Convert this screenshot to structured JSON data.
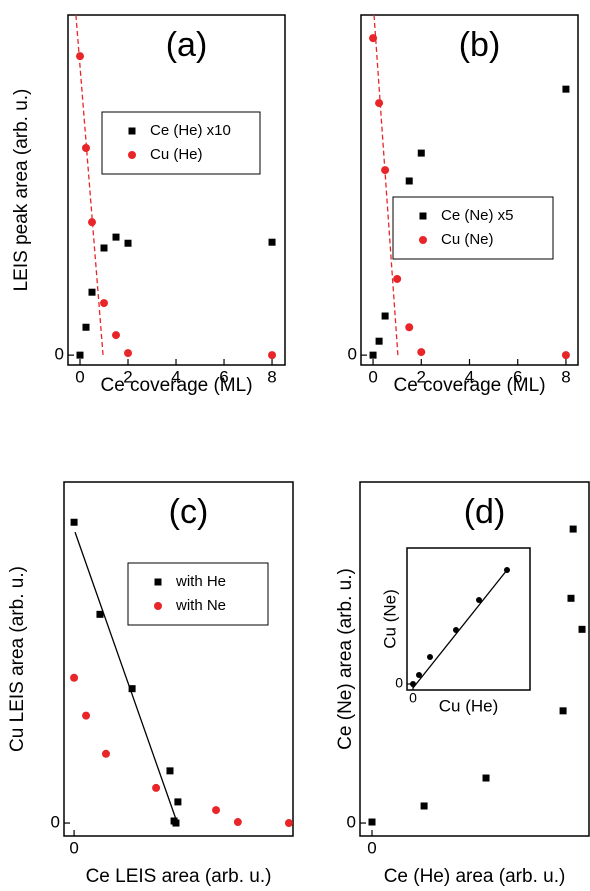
{
  "chart_data": [
    {
      "type": "scatter",
      "title": "(a)",
      "xlabel": "Ce coverage (ML)",
      "ylabel": "LEIS peak area (arb. u.)",
      "xlim": [
        -0.5,
        8.54
      ],
      "ylim": [
        -0.29,
        10
      ],
      "xticks": [
        0,
        2,
        4,
        6,
        8
      ],
      "yticks": [
        0
      ],
      "legend": "right",
      "series": [
        {
          "name": "Ce (He) x10",
          "color": "#000000",
          "marker": "square",
          "x": [
            0,
            0.25,
            0.5,
            1,
            1.5,
            2,
            8
          ],
          "values": [
            0,
            0.82,
            1.85,
            3.15,
            3.47,
            3.29,
            3.32
          ]
        },
        {
          "name": "Cu (He)",
          "color": "#e8262a",
          "marker": "circle",
          "x": [
            0,
            0.25,
            0.5,
            1,
            1.5,
            2,
            8
          ],
          "values": [
            8.79,
            6.09,
            3.91,
            1.53,
            0.59,
            0.06,
            0
          ]
        }
      ],
      "fit_line": {
        "color": "#e8262a",
        "dashed": true,
        "x": [
          -0.17,
          0.96
        ],
        "values": [
          10,
          0
        ]
      }
    },
    {
      "type": "scatter",
      "title": "(b)",
      "xlabel": "Ce coverage (ML)",
      "xlim": [
        -0.5,
        8.5
      ],
      "ylim": [
        -0.29,
        10
      ],
      "xticks": [
        0,
        2,
        4,
        6,
        8
      ],
      "yticks": [
        0
      ],
      "legend": "right",
      "series": [
        {
          "name": "Ce (Ne) x5",
          "color": "#000000",
          "marker": "square",
          "x": [
            0,
            0.25,
            0.5,
            1,
            1.5,
            2,
            8
          ],
          "values": [
            0,
            0.41,
            1.15,
            2.97,
            5.12,
            5.94,
            7.82
          ]
        },
        {
          "name": "Cu (Ne)",
          "color": "#e8262a",
          "marker": "circle",
          "x": [
            0,
            0.25,
            0.5,
            1,
            1.5,
            2,
            8
          ],
          "values": [
            9.32,
            7.41,
            5.44,
            2.24,
            0.82,
            0.09,
            0
          ]
        }
      ],
      "fit_line": {
        "color": "#e8262a",
        "dashed": true,
        "x": [
          0.04,
          1.03
        ],
        "values": [
          10,
          0
        ]
      }
    },
    {
      "type": "scatter",
      "title": "(c)",
      "xlabel": "Ce LEIS area (arb. u.)",
      "ylabel": "Cu LEIS area (arb. u.)",
      "xlim": [
        -0.42,
        9.13
      ],
      "ylim": [
        -0.38,
        10
      ],
      "xticks": [
        0
      ],
      "yticks": [
        0
      ],
      "legend": "right",
      "series": [
        {
          "name": "with He",
          "color": "#000000",
          "marker": "square",
          "x": [
            0,
            1.08,
            2.42,
            4.0,
            4.17,
            4.25,
            4.33
          ],
          "values": [
            8.82,
            6.12,
            3.94,
            1.53,
            0.06,
            0,
            0.62
          ]
        },
        {
          "name": "with Ne",
          "color": "#e8262a",
          "marker": "circle",
          "x": [
            0,
            0.5,
            1.33,
            3.42,
            5.92,
            6.83,
            8.96
          ],
          "values": [
            4.26,
            3.15,
            2.03,
            1.03,
            0.38,
            0.03,
            0
          ]
        }
      ],
      "fit_line": {
        "color": "#000000",
        "dashed": false,
        "x": [
          0.04,
          4.29
        ],
        "values": [
          8.53,
          0.03
        ]
      }
    },
    {
      "type": "scatter",
      "title": "(d)",
      "xlabel": "Ce (He) area (arb. u.)",
      "ylabel": "Ce (Ne) area (arb. u.)",
      "xlim": [
        -0.5,
        9.04
      ],
      "ylim": [
        -0.38,
        10
      ],
      "xticks": [
        0
      ],
      "yticks": [
        0
      ],
      "series": [
        {
          "color": "#000000",
          "marker": "square",
          "x": [
            0,
            2.17,
            4.75,
            7.96,
            8.29,
            8.38,
            8.75
          ],
          "values": [
            0.03,
            0.5,
            1.32,
            3.29,
            6.59,
            8.62,
            5.68
          ]
        }
      ],
      "inset": {
        "type": "scatter",
        "xlabel": "Cu (He)",
        "ylabel": "Cu (Ne)",
        "xlim": [
          -0.6,
          11.7
        ],
        "ylim": [
          -0.6,
          13.6
        ],
        "xticks": [
          0
        ],
        "yticks": [
          0
        ],
        "series": [
          {
            "color": "#000000",
            "marker": "dot",
            "x": [
              0,
              0.6,
              1.7,
              4.3,
              6.6,
              9.4
            ],
            "values": [
              0,
              0.9,
              2.7,
              5.4,
              8.4,
              11.4
            ]
          }
        ],
        "fit_line": {
          "color": "#000000",
          "dashed": false,
          "x": [
            0,
            9.4
          ],
          "values": [
            -0.4,
            11.4
          ]
        }
      }
    }
  ]
}
